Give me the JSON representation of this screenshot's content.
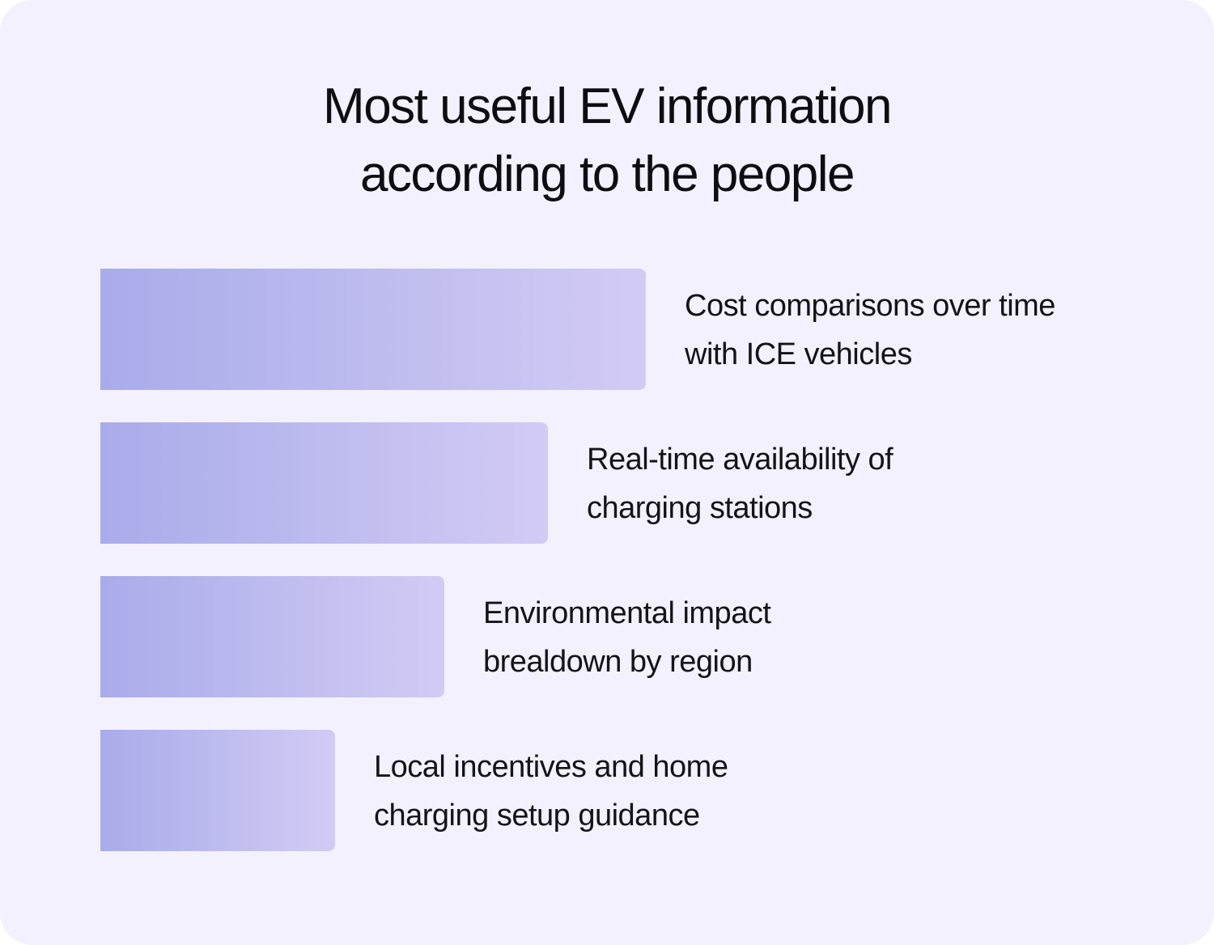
{
  "chart_data": {
    "type": "bar",
    "orientation": "horizontal",
    "title_lines": [
      "Most useful EV information",
      "according to the people"
    ],
    "bars": [
      {
        "label_lines": [
          "Cost comparisons over time",
          "with ICE vehicles"
        ],
        "value": 100
      },
      {
        "label_lines": [
          "Real-time availability of",
          "charging stations"
        ],
        "value": 82
      },
      {
        "label_lines": [
          "Environmental impact",
          "brealdown by region"
        ],
        "value": 63
      },
      {
        "label_lines": [
          "Local incentives and home",
          "charging setup guidance"
        ],
        "value": 43
      }
    ],
    "xlim": [
      0,
      100
    ],
    "axes_visible": false,
    "grid": false,
    "colors": {
      "background": "#f3f1fd",
      "bar_start": "#a9acea",
      "bar_end": "#d2cbf4",
      "text": "#131318"
    }
  }
}
